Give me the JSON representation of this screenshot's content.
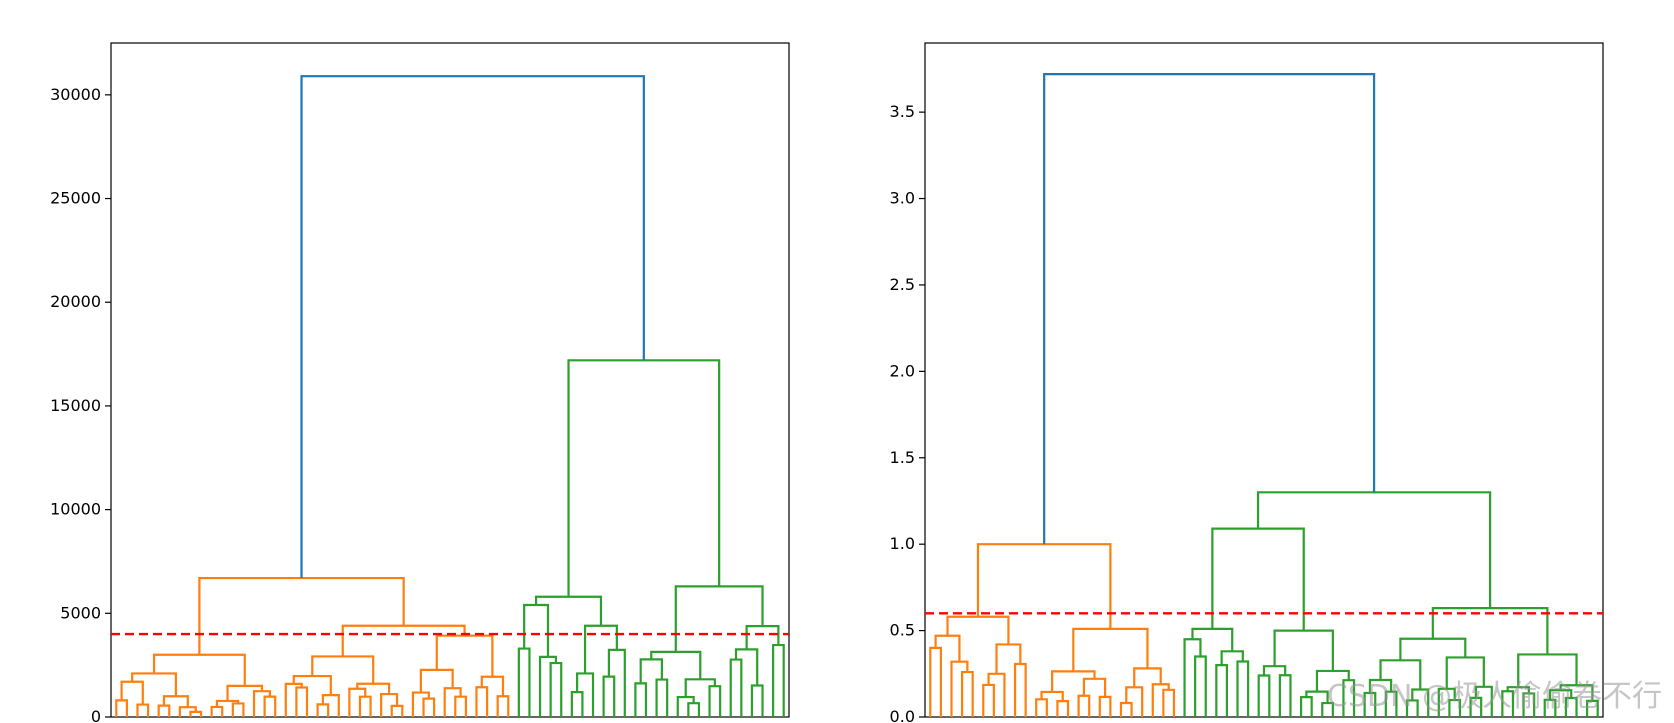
{
  "watermark": "CSDN @极人偷偷卷不行",
  "chart_data": [
    {
      "type": "dendrogram",
      "ylim": [
        0,
        32500
      ],
      "yticks": [
        0,
        5000,
        10000,
        15000,
        20000,
        25000,
        30000
      ],
      "threshold": 4000,
      "threshold_color": "#ff0000",
      "n_leaves": 64,
      "grid": false,
      "colors": {
        "root": "#1f77b4",
        "cluster1": "#ff7f0e",
        "cluster2": "#2ca02c"
      },
      "root_height": 30900,
      "clusters": [
        {
          "color": "cluster1",
          "leaves": 38,
          "top_height": 6700,
          "sub_heights": [
            3000,
            4400,
            2100,
            1500,
            1700,
            1000,
            800,
            600
          ]
        },
        {
          "color": "cluster2",
          "leaves": 26,
          "top_height": 17200,
          "sub_heights": [
            5800,
            6300,
            5400,
            4400,
            3300,
            2900,
            2600,
            2100
          ]
        }
      ]
    },
    {
      "type": "dendrogram",
      "ylim": [
        0,
        3.9
      ],
      "yticks": [
        0.0,
        0.5,
        1.0,
        1.5,
        2.0,
        2.5,
        3.0,
        3.5
      ],
      "threshold": 0.6,
      "threshold_color": "#ff0000",
      "n_leaves": 64,
      "grid": false,
      "colors": {
        "root": "#1f77b4",
        "cluster1": "#ff7f0e",
        "cluster2": "#2ca02c"
      },
      "root_height": 3.72,
      "clusters": [
        {
          "color": "cluster1",
          "leaves": 24,
          "top_height": 1.0,
          "sub_heights": [
            0.58,
            0.51,
            0.47,
            0.42,
            0.4,
            0.32,
            0.26,
            0.25
          ]
        },
        {
          "color": "cluster2",
          "leaves": 40,
          "top_height": 1.3,
          "sub_heights": [
            1.09,
            0.63,
            0.51,
            0.5,
            0.45,
            0.38,
            0.35,
            0.3
          ]
        }
      ]
    }
  ]
}
